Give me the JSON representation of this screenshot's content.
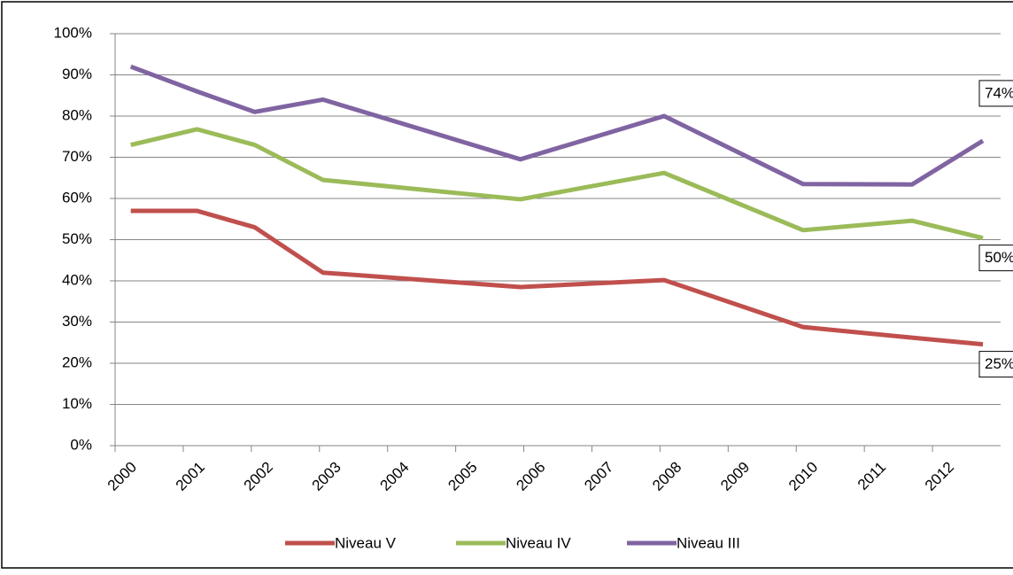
{
  "chart_data": {
    "type": "line",
    "x": [
      2000.23,
      2001.2,
      2002.05,
      2003.05,
      2005.95,
      2008.06,
      2010.1,
      2011.7,
      2012.74
    ],
    "series": [
      {
        "name": "Niveau V",
        "color": "#c0504d",
        "values": [
          57,
          57,
          53,
          42,
          38.5,
          40.2,
          28.8,
          26.2,
          24.6
        ],
        "value_labels": [
          null,
          null,
          null,
          null,
          null,
          null,
          null,
          null,
          "25%"
        ]
      },
      {
        "name": "Niveau IV",
        "color": "#9bbb59",
        "values": [
          73,
          76.8,
          73,
          64.5,
          59.8,
          66.2,
          52.3,
          54.6,
          50.4
        ],
        "value_labels": [
          null,
          null,
          null,
          null,
          null,
          null,
          null,
          null,
          "50%"
        ]
      },
      {
        "name": "Niveau III",
        "color": "#8064a2",
        "values": [
          92,
          86,
          81,
          84,
          69.5,
          80,
          63.5,
          63.4,
          74
        ],
        "value_labels": [
          null,
          null,
          null,
          null,
          null,
          null,
          null,
          null,
          "74%"
        ]
      }
    ],
    "xlim": [
      2000,
      2013
    ],
    "xticks": [
      2000,
      2001,
      2002,
      2003,
      2004,
      2005,
      2006,
      2007,
      2008,
      2009,
      2010,
      2011,
      2012
    ],
    "ylim": [
      0,
      100
    ],
    "yticks": [
      {
        "value": 0,
        "label": "0%"
      },
      {
        "value": 10,
        "label": "10%"
      },
      {
        "value": 20,
        "label": "20%"
      },
      {
        "value": 30,
        "label": "30%"
      },
      {
        "value": 40,
        "label": "40%"
      },
      {
        "value": 50,
        "label": "50%"
      },
      {
        "value": 60,
        "label": "60%"
      },
      {
        "value": 70,
        "label": "70%"
      },
      {
        "value": 80,
        "label": "80%"
      },
      {
        "value": 90,
        "label": "90%"
      },
      {
        "value": 100,
        "label": "100%"
      }
    ],
    "grid": true,
    "legend": "bottom"
  }
}
